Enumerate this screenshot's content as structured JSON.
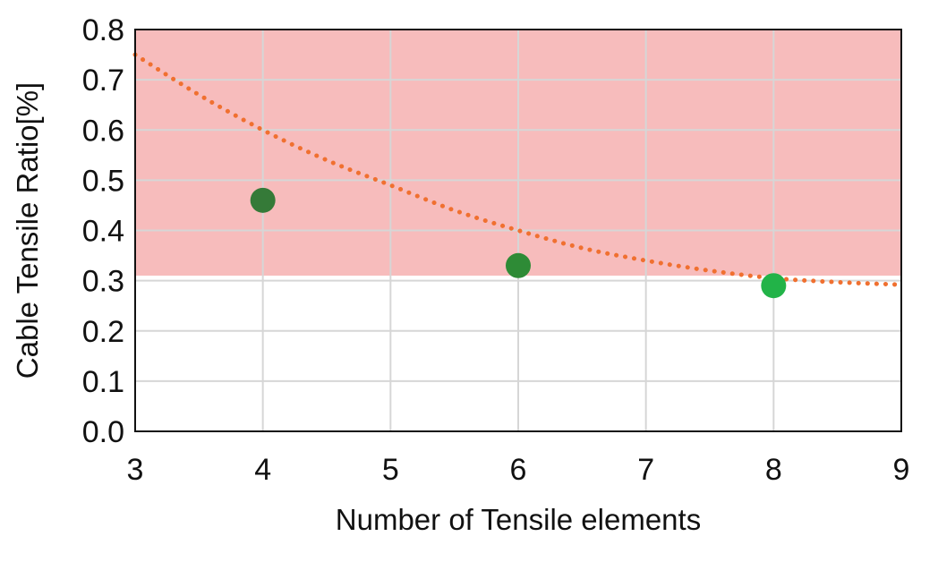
{
  "chart_data": {
    "type": "scatter",
    "title": "",
    "xlabel": "Number of Tensile elements",
    "ylabel": "Cable Tensile Ratio[%]",
    "xlim": [
      3,
      9
    ],
    "ylim": [
      0,
      0.8
    ],
    "x_ticks": [
      "3",
      "4",
      "5",
      "6",
      "7",
      "8",
      "9"
    ],
    "y_ticks": [
      "0.0",
      "0.1",
      "0.2",
      "0.3",
      "0.4",
      "0.5",
      "0.6",
      "0.7",
      "0.8"
    ],
    "grid": true,
    "shaded_region": {
      "y_from": 0.31,
      "y_to": 0.8,
      "color": "#f7bcbc"
    },
    "series": [
      {
        "name": "data",
        "x": [
          4,
          6,
          8
        ],
        "y": [
          0.46,
          0.33,
          0.29
        ],
        "colors": [
          "#357a38",
          "#2e8b36",
          "#22b348"
        ]
      }
    ],
    "trendline": {
      "type": "polynomial",
      "style": "dotted",
      "color": "#f07030",
      "x": [
        3,
        3.5,
        4,
        4.5,
        5,
        5.5,
        6,
        6.5,
        7,
        7.5,
        8,
        8.5,
        9
      ],
      "y": [
        0.75,
        0.67,
        0.6,
        0.54,
        0.49,
        0.44,
        0.4,
        0.365,
        0.34,
        0.32,
        0.305,
        0.297,
        0.292
      ]
    }
  }
}
